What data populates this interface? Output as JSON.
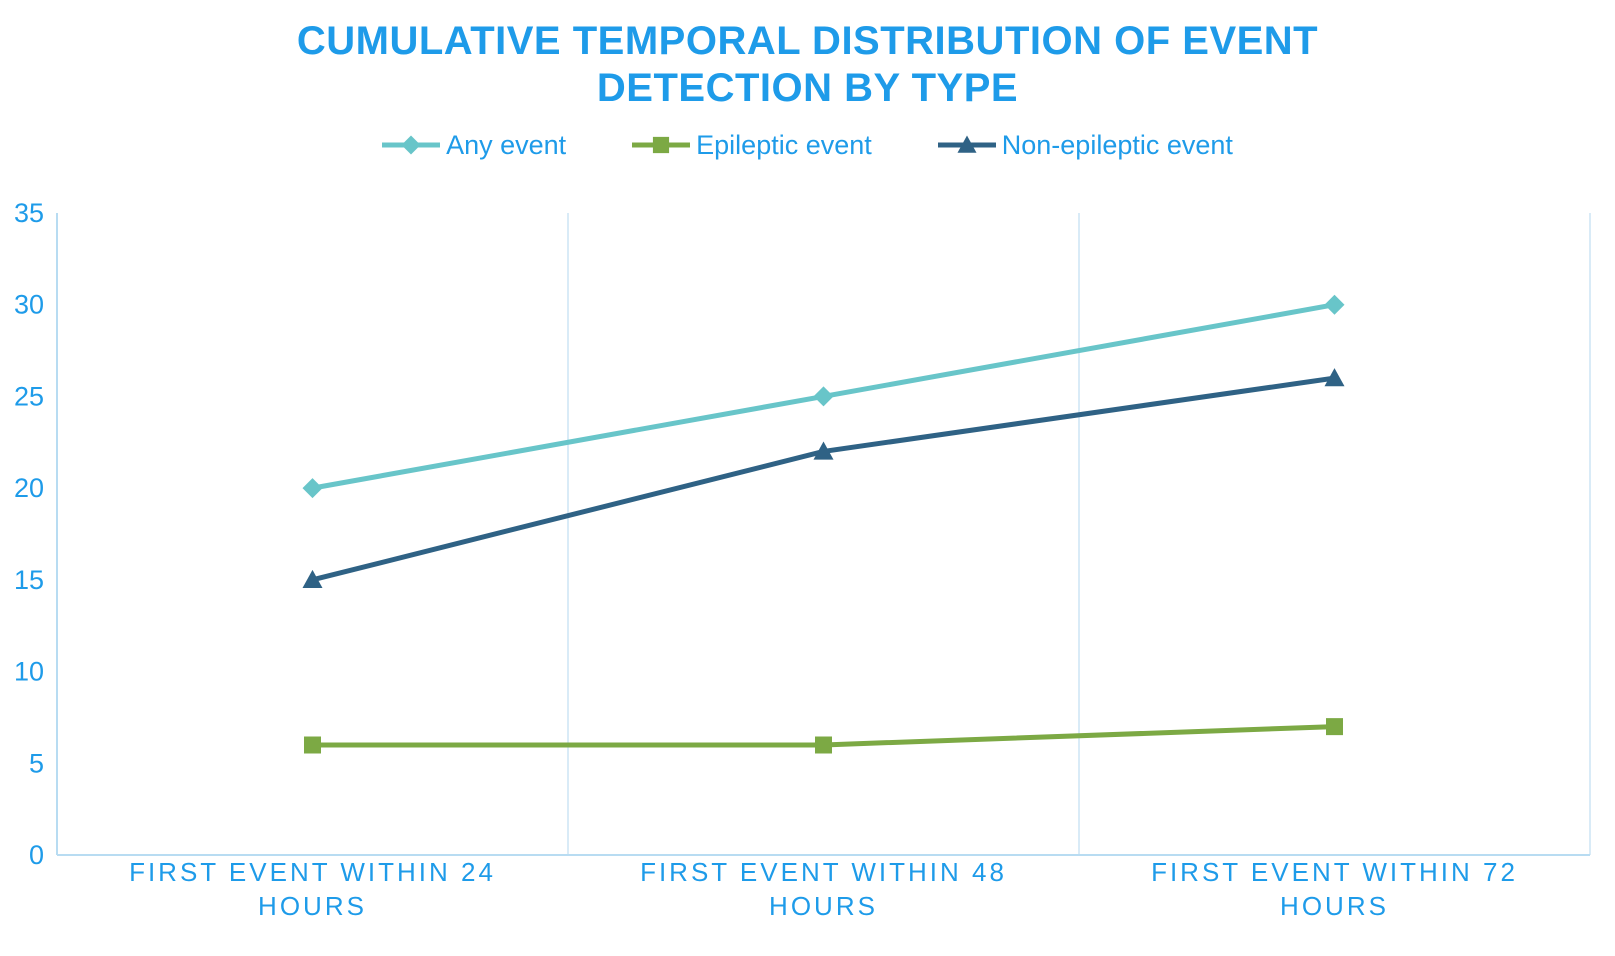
{
  "colors": {
    "text_blue": "#1E9BE9",
    "axis_line": "#B8DCF2",
    "gridline": "#D9EBF7",
    "background": "#FFFFFF"
  },
  "chart_data": {
    "type": "line",
    "title": "CUMULATIVE TEMPORAL DISTRIBUTION OF EVENT DETECTION BY TYPE",
    "xlabel": "",
    "ylabel": "",
    "categories": [
      "FIRST EVENT WITHIN 24 HOURS",
      "FIRST EVENT WITHIN 48 HOURS",
      "FIRST EVENT WITHIN 72 HOURS"
    ],
    "series": [
      {
        "name": "Any event",
        "values": [
          20,
          25,
          30
        ],
        "color": "#68C5C9",
        "marker": "diamond"
      },
      {
        "name": "Epileptic event",
        "values": [
          6,
          6,
          7
        ],
        "color": "#7CA944",
        "marker": "square"
      },
      {
        "name": "Non-epileptic event",
        "values": [
          15,
          22,
          26
        ],
        "color": "#2F6285",
        "marker": "triangle"
      }
    ],
    "ylim": [
      0,
      35
    ],
    "ytick_step": 5,
    "yticks": [
      0,
      5,
      10,
      15,
      20,
      25,
      30,
      35
    ],
    "grid": "vertical-category-boundaries",
    "horizontal_grid": false,
    "legend_position": "top"
  }
}
